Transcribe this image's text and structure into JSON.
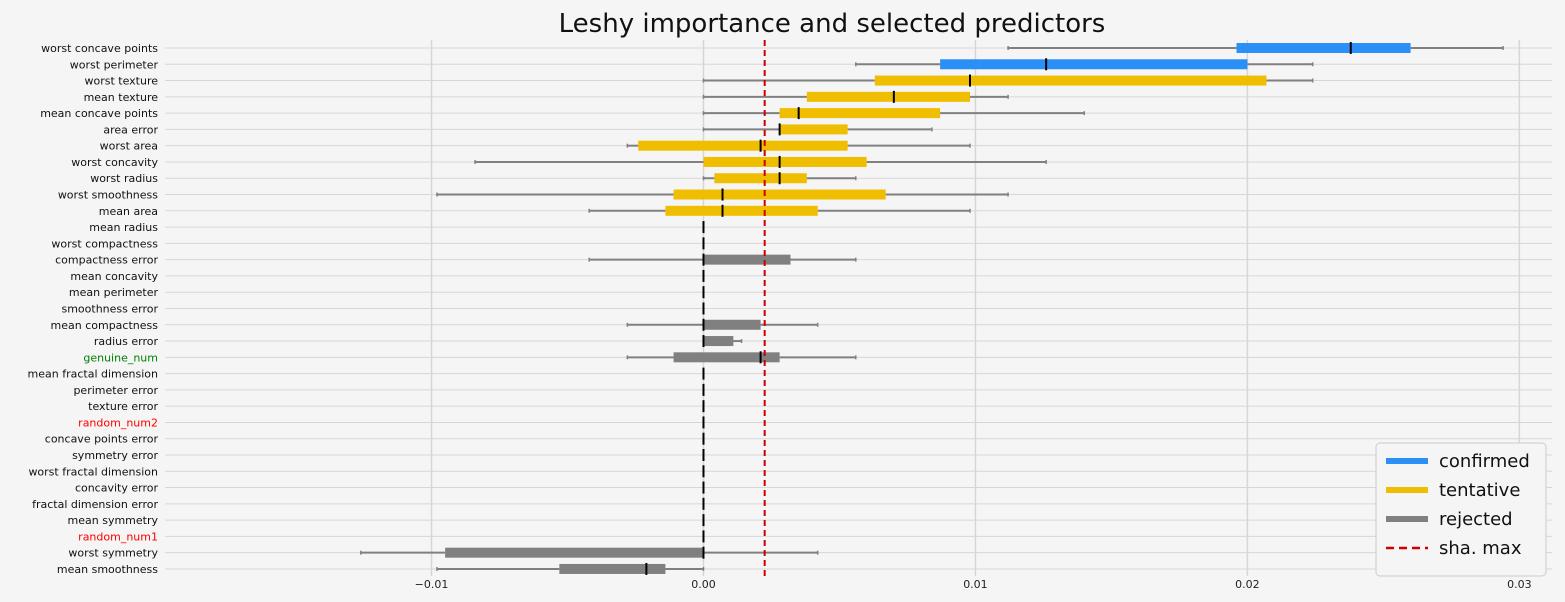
{
  "chart_data": {
    "type": "bar",
    "subtype": "horizontal-boxplot",
    "title": "Leshy importance and selected predictors",
    "xlim": [
      -0.0198,
      0.0312
    ],
    "xticks": [
      -0.01,
      0.0,
      0.01,
      0.02,
      0.03
    ],
    "xtick_labels": [
      "−0.01",
      "0.00",
      "0.01",
      "0.02",
      "0.03"
    ],
    "grid": true,
    "shadow_max": 0.00225,
    "status_colors": {
      "confirmed": "#2b90f5",
      "tentative": "#f0be00",
      "rejected": "#808080",
      "sha_max": "#cc0000"
    },
    "label_colors": {
      "genuine_num": "#008000",
      "random_num1": "#ff0000",
      "random_num2": "#ff0000"
    },
    "legend": {
      "position": "lower-right",
      "items": [
        {
          "label": "confirmed",
          "key": "confirmed",
          "style": "solid"
        },
        {
          "label": "tentative",
          "key": "tentative",
          "style": "solid"
        },
        {
          "label": "rejected",
          "key": "rejected",
          "style": "solid"
        },
        {
          "label": "sha. max",
          "key": "sha_max",
          "style": "dashed"
        }
      ]
    },
    "features": [
      {
        "name": "worst concave points",
        "status": "confirmed",
        "whisker_low": 0.0112,
        "q1": 0.0196,
        "median": 0.0238,
        "q3": 0.026,
        "whisker_high": 0.0294
      },
      {
        "name": "worst perimeter",
        "status": "confirmed",
        "whisker_low": 0.0056,
        "q1": 0.0087,
        "median": 0.0126,
        "q3": 0.02,
        "whisker_high": 0.0224
      },
      {
        "name": "worst texture",
        "status": "tentative",
        "whisker_low": 0.0,
        "q1": 0.0063,
        "median": 0.0098,
        "q3": 0.0207,
        "whisker_high": 0.0224
      },
      {
        "name": "mean texture",
        "status": "tentative",
        "whisker_low": 0.0,
        "q1": 0.0038,
        "median": 0.007,
        "q3": 0.0098,
        "whisker_high": 0.0112
      },
      {
        "name": "mean concave points",
        "status": "tentative",
        "whisker_low": 0.0,
        "q1": 0.0028,
        "median": 0.0035,
        "q3": 0.0087,
        "whisker_high": 0.014
      },
      {
        "name": "area error",
        "status": "tentative",
        "whisker_low": 0.0,
        "q1": 0.0028,
        "median": 0.0028,
        "q3": 0.0053,
        "whisker_high": 0.0084
      },
      {
        "name": "worst area",
        "status": "tentative",
        "whisker_low": -0.0028,
        "q1": -0.0024,
        "median": 0.0021,
        "q3": 0.0053,
        "whisker_high": 0.0098
      },
      {
        "name": "worst concavity",
        "status": "tentative",
        "whisker_low": -0.0084,
        "q1": 0.0,
        "median": 0.0028,
        "q3": 0.006,
        "whisker_high": 0.0126
      },
      {
        "name": "worst radius",
        "status": "tentative",
        "whisker_low": 0.0,
        "q1": 0.0004,
        "median": 0.0028,
        "q3": 0.0038,
        "whisker_high": 0.0056
      },
      {
        "name": "worst smoothness",
        "status": "tentative",
        "whisker_low": -0.0098,
        "q1": -0.0011,
        "median": 0.0007,
        "q3": 0.0067,
        "whisker_high": 0.0112
      },
      {
        "name": "mean area",
        "status": "tentative",
        "whisker_low": -0.0042,
        "q1": -0.0014,
        "median": 0.0007,
        "q3": 0.0042,
        "whisker_high": 0.0098
      },
      {
        "name": "mean radius",
        "status": "rejected",
        "whisker_low": 0.0,
        "q1": 0.0,
        "median": 0.0,
        "q3": 0.0,
        "whisker_high": 0.0
      },
      {
        "name": "worst compactness",
        "status": "rejected",
        "whisker_low": 0.0,
        "q1": 0.0,
        "median": 0.0,
        "q3": 0.0,
        "whisker_high": 0.0
      },
      {
        "name": "compactness error",
        "status": "rejected",
        "whisker_low": -0.0042,
        "q1": 0.0,
        "median": 0.0,
        "q3": 0.0032,
        "whisker_high": 0.0056
      },
      {
        "name": "mean concavity",
        "status": "rejected",
        "whisker_low": 0.0,
        "q1": 0.0,
        "median": 0.0,
        "q3": 0.0,
        "whisker_high": 0.0
      },
      {
        "name": "mean perimeter",
        "status": "rejected",
        "whisker_low": 0.0,
        "q1": 0.0,
        "median": 0.0,
        "q3": 0.0,
        "whisker_high": 0.0
      },
      {
        "name": "smoothness error",
        "status": "rejected",
        "whisker_low": 0.0,
        "q1": 0.0,
        "median": 0.0,
        "q3": 0.0,
        "whisker_high": 0.0
      },
      {
        "name": "mean compactness",
        "status": "rejected",
        "whisker_low": -0.0028,
        "q1": 0.0,
        "median": 0.0,
        "q3": 0.0021,
        "whisker_high": 0.0042
      },
      {
        "name": "radius error",
        "status": "rejected",
        "whisker_low": 0.0,
        "q1": 0.0,
        "median": 0.0,
        "q3": 0.0011,
        "whisker_high": 0.0014
      },
      {
        "name": "genuine_num",
        "status": "rejected",
        "whisker_low": -0.0028,
        "q1": -0.0011,
        "median": 0.0021,
        "q3": 0.0028,
        "whisker_high": 0.0056
      },
      {
        "name": "mean fractal dimension",
        "status": "rejected",
        "whisker_low": 0.0,
        "q1": 0.0,
        "median": 0.0,
        "q3": 0.0,
        "whisker_high": 0.0
      },
      {
        "name": "perimeter error",
        "status": "rejected",
        "whisker_low": 0.0,
        "q1": 0.0,
        "median": 0.0,
        "q3": 0.0,
        "whisker_high": 0.0
      },
      {
        "name": "texture error",
        "status": "rejected",
        "whisker_low": 0.0,
        "q1": 0.0,
        "median": 0.0,
        "q3": 0.0,
        "whisker_high": 0.0
      },
      {
        "name": "random_num2",
        "status": "rejected",
        "whisker_low": 0.0,
        "q1": 0.0,
        "median": 0.0,
        "q3": 0.0,
        "whisker_high": 0.0
      },
      {
        "name": "concave points error",
        "status": "rejected",
        "whisker_low": 0.0,
        "q1": 0.0,
        "median": 0.0,
        "q3": 0.0,
        "whisker_high": 0.0
      },
      {
        "name": "symmetry error",
        "status": "rejected",
        "whisker_low": 0.0,
        "q1": 0.0,
        "median": 0.0,
        "q3": 0.0,
        "whisker_high": 0.0
      },
      {
        "name": "worst fractal dimension",
        "status": "rejected",
        "whisker_low": 0.0,
        "q1": 0.0,
        "median": 0.0,
        "q3": 0.0,
        "whisker_high": 0.0
      },
      {
        "name": "concavity error",
        "status": "rejected",
        "whisker_low": 0.0,
        "q1": 0.0,
        "median": 0.0,
        "q3": 0.0,
        "whisker_high": 0.0
      },
      {
        "name": "fractal dimension error",
        "status": "rejected",
        "whisker_low": 0.0,
        "q1": 0.0,
        "median": 0.0,
        "q3": 0.0,
        "whisker_high": 0.0
      },
      {
        "name": "mean symmetry",
        "status": "rejected",
        "whisker_low": 0.0,
        "q1": 0.0,
        "median": 0.0,
        "q3": 0.0,
        "whisker_high": 0.0
      },
      {
        "name": "random_num1",
        "status": "rejected",
        "whisker_low": 0.0,
        "q1": 0.0,
        "median": 0.0,
        "q3": 0.0,
        "whisker_high": 0.0
      },
      {
        "name": "worst symmetry",
        "status": "rejected",
        "whisker_low": -0.0126,
        "q1": -0.0095,
        "median": 0.0,
        "q3": 0.0,
        "whisker_high": 0.0042
      },
      {
        "name": "mean smoothness",
        "status": "rejected",
        "whisker_low": -0.0098,
        "q1": -0.0053,
        "median": -0.0021,
        "q3": -0.0014,
        "whisker_high": 0.0
      }
    ]
  }
}
